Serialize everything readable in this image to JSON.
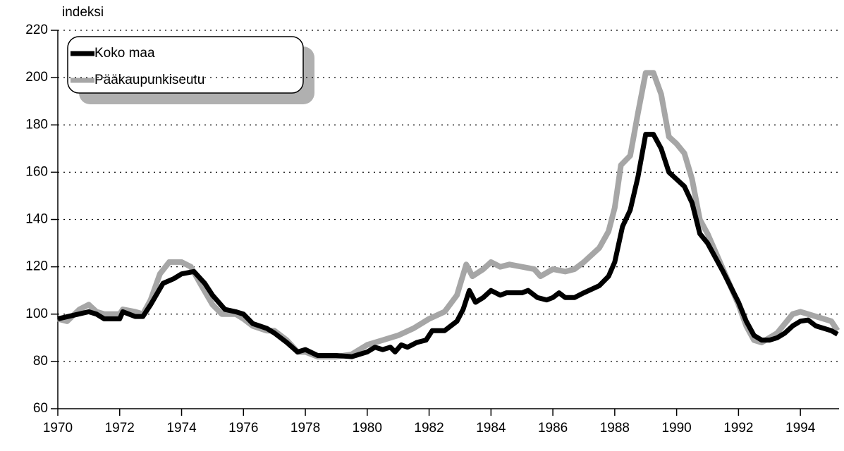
{
  "chart_data": {
    "type": "line",
    "y_label": "indeksi",
    "xlim": [
      1970,
      1995.25
    ],
    "xticks": [
      1970,
      1972,
      1974,
      1976,
      1978,
      1980,
      1982,
      1984,
      1986,
      1988,
      1990,
      1992,
      1994
    ],
    "ylim": [
      60,
      220
    ],
    "yticks": [
      60,
      80,
      100,
      120,
      140,
      160,
      180,
      200,
      220
    ],
    "grid": true,
    "legend": "top-left",
    "series": [
      {
        "name": "Koko maa",
        "color": "#000000",
        "x": [
          1970.0,
          1970.5,
          1971.0,
          1971.25,
          1971.5,
          1972.0,
          1972.1,
          1972.5,
          1972.75,
          1973.0,
          1973.4,
          1973.75,
          1974.0,
          1974.4,
          1974.75,
          1975.0,
          1975.4,
          1975.75,
          1976.0,
          1976.3,
          1976.75,
          1977.0,
          1977.4,
          1977.75,
          1978.0,
          1978.4,
          1979.0,
          1979.5,
          1980.0,
          1980.25,
          1980.5,
          1980.75,
          1980.9,
          1981.1,
          1981.3,
          1981.6,
          1981.9,
          1982.1,
          1982.5,
          1982.9,
          1983.1,
          1983.3,
          1983.5,
          1983.75,
          1984.0,
          1984.3,
          1984.5,
          1985.0,
          1985.2,
          1985.5,
          1985.8,
          1986.0,
          1986.2,
          1986.4,
          1986.7,
          1987.0,
          1987.5,
          1987.8,
          1988.0,
          1988.25,
          1988.5,
          1988.75,
          1989.0,
          1989.25,
          1989.5,
          1989.75,
          1990.0,
          1990.25,
          1990.5,
          1990.75,
          1991.0,
          1991.5,
          1992.0,
          1992.25,
          1992.5,
          1992.75,
          1993.0,
          1993.25,
          1993.5,
          1993.75,
          1994.0,
          1994.25,
          1994.5,
          1994.75,
          1995.0,
          1995.2
        ],
        "values": [
          98,
          99.5,
          101,
          100,
          98,
          98,
          101,
          99,
          99,
          104,
          113,
          115,
          117,
          118,
          113,
          108,
          102,
          101,
          100,
          96,
          94,
          92,
          88,
          84,
          85,
          82.5,
          82.5,
          82,
          84,
          86,
          85,
          86,
          84,
          87,
          86,
          88,
          89,
          93,
          93,
          97,
          102,
          110,
          105,
          107,
          110,
          108,
          109,
          109,
          110,
          107,
          106,
          107,
          109,
          107,
          107,
          109,
          112,
          116,
          122,
          137,
          144,
          158,
          176,
          176,
          170,
          160,
          157,
          154,
          147,
          134,
          130,
          118,
          105,
          97,
          91,
          89,
          89,
          90,
          92,
          95,
          97,
          97.5,
          95,
          94,
          93,
          91.5
        ]
      },
      {
        "name": "Pääkaupunkiseutu",
        "color": "#a6a6a6",
        "x": [
          1970.0,
          1970.3,
          1970.7,
          1971.0,
          1971.25,
          1971.5,
          1972.0,
          1972.1,
          1972.5,
          1972.75,
          1973.0,
          1973.3,
          1973.6,
          1974.0,
          1974.3,
          1974.6,
          1975.0,
          1975.3,
          1975.75,
          1976.0,
          1976.3,
          1976.75,
          1977.0,
          1977.4,
          1977.75,
          1978.0,
          1978.4,
          1979.0,
          1979.5,
          1980.0,
          1980.5,
          1981.0,
          1981.5,
          1982.0,
          1982.5,
          1982.9,
          1983.2,
          1983.4,
          1983.75,
          1984.0,
          1984.3,
          1984.6,
          1985.0,
          1985.4,
          1985.6,
          1986.0,
          1986.4,
          1986.7,
          1987.0,
          1987.5,
          1987.8,
          1988.0,
          1988.2,
          1988.5,
          1988.75,
          1989.0,
          1989.25,
          1989.5,
          1989.75,
          1990.0,
          1990.25,
          1990.5,
          1990.75,
          1991.0,
          1991.5,
          1992.0,
          1992.25,
          1992.5,
          1992.75,
          1993.0,
          1993.25,
          1993.5,
          1993.75,
          1994.0,
          1994.5,
          1995.0,
          1995.2
        ],
        "values": [
          98,
          97,
          102,
          104,
          101,
          100,
          100,
          102,
          101,
          100,
          106,
          117,
          122,
          122,
          120,
          113,
          104,
          100,
          100,
          98,
          95,
          93,
          93,
          89,
          84,
          84,
          82,
          82,
          83,
          87,
          89,
          91,
          94,
          98,
          101,
          108,
          121,
          116,
          119,
          122,
          120,
          121,
          120,
          119,
          116,
          119,
          118,
          119,
          122,
          128,
          135,
          145,
          163,
          167,
          185,
          202,
          202,
          193,
          175,
          172,
          168,
          157,
          140,
          134,
          119,
          104,
          95,
          89,
          88,
          90,
          92,
          96,
          100,
          101,
          99,
          97,
          93
        ]
      }
    ]
  }
}
